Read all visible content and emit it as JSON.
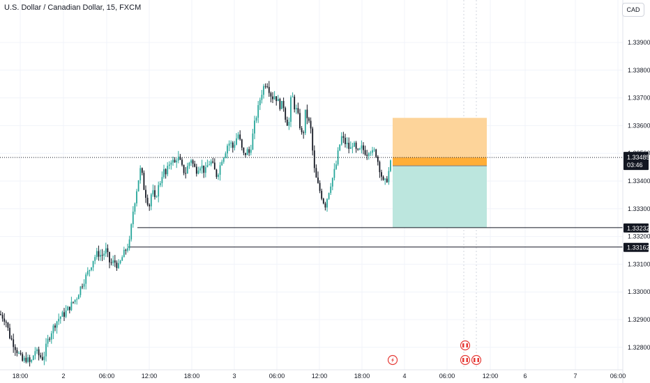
{
  "header": {
    "title": "U.S. Dollar / Canadian Dollar, 15, FXCM",
    "currency": "CAD"
  },
  "colors": {
    "bull": "#26a69a",
    "bear": "#131722",
    "grid": "#f0f3fa",
    "price_line": "#131722",
    "stop_zone": "#fdd49a",
    "stop_line": "#ffa726",
    "target_zone": "#bce6de",
    "level_line": "#131722",
    "event_icon": "#e53935"
  },
  "chart_data": {
    "type": "candlestick",
    "y_ticks": [
      "1.33900",
      "1.33800",
      "1.33700",
      "1.33600",
      "1.33500",
      "1.33400",
      "1.33300",
      "1.33200",
      "1.33100",
      "1.33000",
      "1.32900",
      "1.32800"
    ],
    "y_tick_values": [
      1.339,
      1.338,
      1.337,
      1.336,
      1.335,
      1.334,
      1.333,
      1.332,
      1.331,
      1.33,
      1.329,
      1.328
    ],
    "ylim": [
      1.3272,
      1.3406
    ],
    "x_ticks": [
      "18:00",
      "2",
      "06:00",
      "12:00",
      "18:00",
      "3",
      "06:00",
      "12:00",
      "18:00",
      "4",
      "06:00",
      "12:00",
      "6",
      "7",
      "06:00"
    ],
    "current_price": {
      "value": 1.33485,
      "label": "1.33485",
      "countdown": "03:46"
    },
    "levels": [
      {
        "value": 1.33232,
        "label": "1.33232"
      },
      {
        "value": 1.33162,
        "label": "1.33162"
      }
    ],
    "position": {
      "entry": 1.33455,
      "stop": 1.33628,
      "target": 1.33232
    },
    "path": [
      [
        0,
        1.3292
      ],
      [
        8,
        1.329
      ],
      [
        14,
        1.3284
      ],
      [
        20,
        1.3281
      ],
      [
        26,
        1.3278
      ],
      [
        32,
        1.3275
      ],
      [
        38,
        1.3276
      ],
      [
        44,
        1.3274
      ],
      [
        50,
        1.3279
      ],
      [
        56,
        1.3277
      ],
      [
        62,
        1.3276
      ],
      [
        68,
        1.3282
      ],
      [
        74,
        1.3286
      ],
      [
        80,
        1.3289
      ],
      [
        86,
        1.3291
      ],
      [
        92,
        1.3292
      ],
      [
        98,
        1.3294
      ],
      [
        104,
        1.3296
      ],
      [
        110,
        1.3298
      ],
      [
        116,
        1.3302
      ],
      [
        122,
        1.3305
      ],
      [
        128,
        1.3308
      ],
      [
        134,
        1.3312
      ],
      [
        140,
        1.3314
      ],
      [
        146,
        1.3313
      ],
      [
        152,
        1.3315
      ],
      [
        158,
        1.331
      ],
      [
        164,
        1.3311
      ],
      [
        170,
        1.3309
      ],
      [
        176,
        1.3313
      ],
      [
        182,
        1.3316
      ],
      [
        186,
        1.3318
      ],
      [
        190,
        1.3328
      ],
      [
        194,
        1.3334
      ],
      [
        198,
        1.334
      ],
      [
        202,
        1.3345
      ],
      [
        206,
        1.3338
      ],
      [
        210,
        1.3334
      ],
      [
        214,
        1.3331
      ],
      [
        218,
        1.3337
      ],
      [
        222,
        1.3333
      ],
      [
        226,
        1.3337
      ],
      [
        230,
        1.334
      ],
      [
        234,
        1.3344
      ],
      [
        238,
        1.3342
      ],
      [
        242,
        1.3346
      ],
      [
        246,
        1.3348
      ],
      [
        250,
        1.3346
      ],
      [
        254,
        1.3349
      ],
      [
        258,
        1.3347
      ],
      [
        262,
        1.3344
      ],
      [
        266,
        1.3343
      ],
      [
        270,
        1.3346
      ],
      [
        274,
        1.3348
      ],
      [
        278,
        1.3345
      ],
      [
        282,
        1.3344
      ],
      [
        286,
        1.3346
      ],
      [
        290,
        1.3345
      ],
      [
        294,
        1.3343
      ],
      [
        298,
        1.3346
      ],
      [
        302,
        1.3347
      ],
      [
        306,
        1.3345
      ],
      [
        310,
        1.3342
      ],
      [
        314,
        1.3344
      ],
      [
        318,
        1.3348
      ],
      [
        322,
        1.335
      ],
      [
        326,
        1.3353
      ],
      [
        330,
        1.3354
      ],
      [
        334,
        1.3352
      ],
      [
        338,
        1.3355
      ],
      [
        342,
        1.3357
      ],
      [
        346,
        1.3352
      ],
      [
        350,
        1.3349
      ],
      [
        354,
        1.3351
      ],
      [
        358,
        1.335
      ],
      [
        362,
        1.3356
      ],
      [
        366,
        1.3362
      ],
      [
        370,
        1.3366
      ],
      [
        374,
        1.3371
      ],
      [
        378,
        1.3374
      ],
      [
        382,
        1.3376
      ],
      [
        386,
        1.3373
      ],
      [
        390,
        1.337
      ],
      [
        394,
        1.3371
      ],
      [
        398,
        1.3369
      ],
      [
        402,
        1.3367
      ],
      [
        406,
        1.3368
      ],
      [
        410,
        1.3362
      ],
      [
        414,
        1.336
      ],
      [
        418,
        1.3372
      ],
      [
        422,
        1.3367
      ],
      [
        426,
        1.3365
      ],
      [
        430,
        1.336
      ],
      [
        434,
        1.3355
      ],
      [
        438,
        1.3365
      ],
      [
        442,
        1.3362
      ],
      [
        446,
        1.3358
      ],
      [
        450,
        1.3345
      ],
      [
        454,
        1.334
      ],
      [
        458,
        1.3337
      ],
      [
        462,
        1.3334
      ],
      [
        466,
        1.3331
      ],
      [
        470,
        1.3335
      ],
      [
        474,
        1.3339
      ],
      [
        478,
        1.3342
      ],
      [
        482,
        1.3346
      ],
      [
        486,
        1.3352
      ],
      [
        490,
        1.3356
      ],
      [
        494,
        1.3354
      ],
      [
        498,
        1.3353
      ],
      [
        502,
        1.3351
      ],
      [
        506,
        1.3354
      ],
      [
        510,
        1.3351
      ],
      [
        514,
        1.335
      ],
      [
        518,
        1.3352
      ],
      [
        522,
        1.3351
      ],
      [
        526,
        1.335
      ],
      [
        530,
        1.3352
      ],
      [
        534,
        1.335
      ],
      [
        538,
        1.3351
      ],
      [
        542,
        1.3347
      ],
      [
        546,
        1.3343
      ],
      [
        550,
        1.3339
      ],
      [
        554,
        1.334
      ],
      [
        558,
        1.3344
      ],
      [
        562,
        1.33485
      ]
    ],
    "events": [
      {
        "x": 563,
        "kind": "bolt"
      },
      {
        "x": 667,
        "kind": "flag"
      },
      {
        "x": 683,
        "kind": "flag"
      },
      {
        "x": 667,
        "kind": "flag-stack"
      }
    ]
  }
}
